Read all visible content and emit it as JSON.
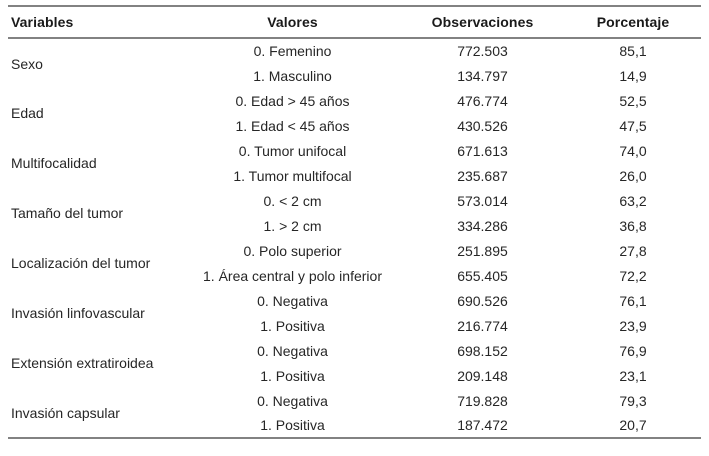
{
  "table": {
    "columns": [
      "Variables",
      "Valores",
      "Observaciones",
      "Porcentaje"
    ],
    "groups": [
      {
        "variable": "Sexo",
        "rows": [
          {
            "valor": "0. Femenino",
            "observaciones": "772.503",
            "porcentaje": "85,1"
          },
          {
            "valor": "1. Masculino",
            "observaciones": "134.797",
            "porcentaje": "14,9"
          }
        ]
      },
      {
        "variable": "Edad",
        "rows": [
          {
            "valor": "0. Edad > 45 años",
            "observaciones": "476.774",
            "porcentaje": "52,5"
          },
          {
            "valor": "1. Edad < 45 años",
            "observaciones": "430.526",
            "porcentaje": "47,5"
          }
        ]
      },
      {
        "variable": "Multifocalidad",
        "rows": [
          {
            "valor": "0. Tumor unifocal",
            "observaciones": "671.613",
            "porcentaje": "74,0"
          },
          {
            "valor": "1. Tumor multifocal",
            "observaciones": "235.687",
            "porcentaje": "26,0"
          }
        ]
      },
      {
        "variable": "Tamaño del tumor",
        "rows": [
          {
            "valor": "0. < 2 cm",
            "observaciones": "573.014",
            "porcentaje": "63,2"
          },
          {
            "valor": "1. > 2 cm",
            "observaciones": "334.286",
            "porcentaje": "36,8"
          }
        ]
      },
      {
        "variable": "Localización del tumor",
        "rows": [
          {
            "valor": "0. Polo superior",
            "observaciones": "251.895",
            "porcentaje": "27,8"
          },
          {
            "valor": "1. Área central y polo inferior",
            "observaciones": "655.405",
            "porcentaje": "72,2"
          }
        ]
      },
      {
        "variable": "Invasión linfovascular",
        "rows": [
          {
            "valor": "0. Negativa",
            "observaciones": "690.526",
            "porcentaje": "76,1"
          },
          {
            "valor": "1. Positiva",
            "observaciones": "216.774",
            "porcentaje": "23,9"
          }
        ]
      },
      {
        "variable": "Extensión extratiroidea",
        "rows": [
          {
            "valor": "0. Negativa",
            "observaciones": "698.152",
            "porcentaje": "76,9"
          },
          {
            "valor": "1. Positiva",
            "observaciones": "209.148",
            "porcentaje": "23,1"
          }
        ]
      },
      {
        "variable": "Invasión capsular",
        "rows": [
          {
            "valor": "0. Negativa",
            "observaciones": "719.828",
            "porcentaje": "79,3"
          },
          {
            "valor": "1. Positiva",
            "observaciones": "187.472",
            "porcentaje": "20,7"
          }
        ]
      }
    ]
  },
  "colors": {
    "text": "#262626",
    "header_text": "#1a1a1a",
    "rule_line": "#828282",
    "background": "#ffffff"
  }
}
